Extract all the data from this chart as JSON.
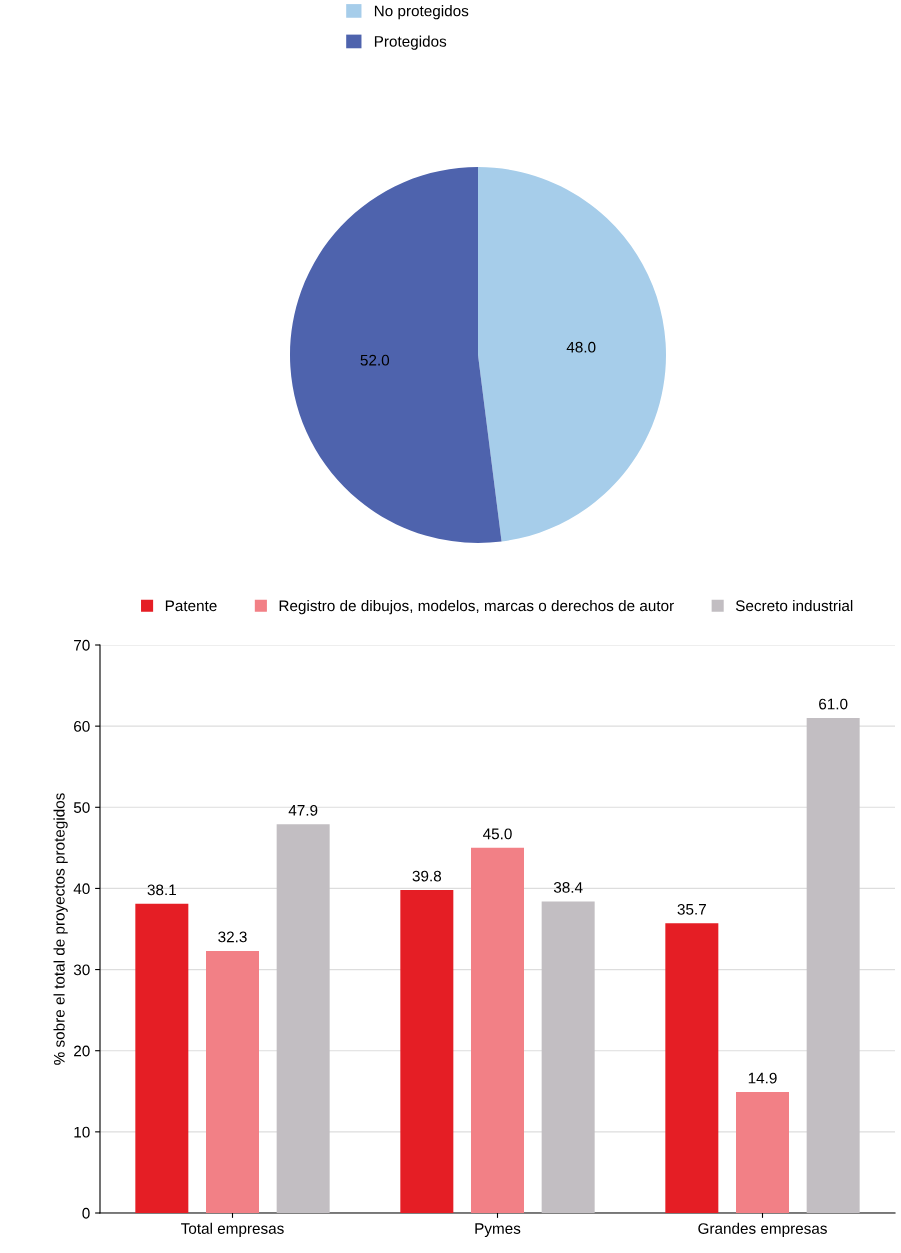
{
  "chart_data": [
    {
      "type": "pie",
      "categories": [
        "No protegidos",
        "Protegidos"
      ],
      "values": [
        48.0,
        52.0
      ],
      "value_labels": [
        "48.0",
        "52.0"
      ],
      "colors": [
        "#a6cdea",
        "#4e63ad"
      ],
      "legend": "top"
    },
    {
      "type": "bar",
      "ylabel": "% sobre el total de proyectos protegidos",
      "categories": [
        "Total empresas",
        "Pymes",
        "Grandes empresas"
      ],
      "series": [
        {
          "name": "Patente",
          "color": "#e51e25",
          "values": [
            38.1,
            39.8,
            35.7
          ],
          "value_labels": [
            "38.1",
            "39.8",
            "35.7"
          ]
        },
        {
          "name": "Registro de dibujos, modelos, marcas o derechos de autor",
          "color": "#f28086",
          "values": [
            32.3,
            45.0,
            14.9
          ],
          "value_labels": [
            "32.3",
            "45.0",
            "14.9"
          ]
        },
        {
          "name": "Secreto industrial",
          "color": "#c2bec2",
          "values": [
            47.9,
            38.4,
            61.0
          ],
          "value_labels": [
            "47.9",
            "38.4",
            "61.0"
          ]
        }
      ],
      "ylim": [
        0,
        70
      ],
      "yticks": [
        0,
        10,
        20,
        30,
        40,
        50,
        60,
        70
      ],
      "grid": "y",
      "legend": "top"
    }
  ]
}
